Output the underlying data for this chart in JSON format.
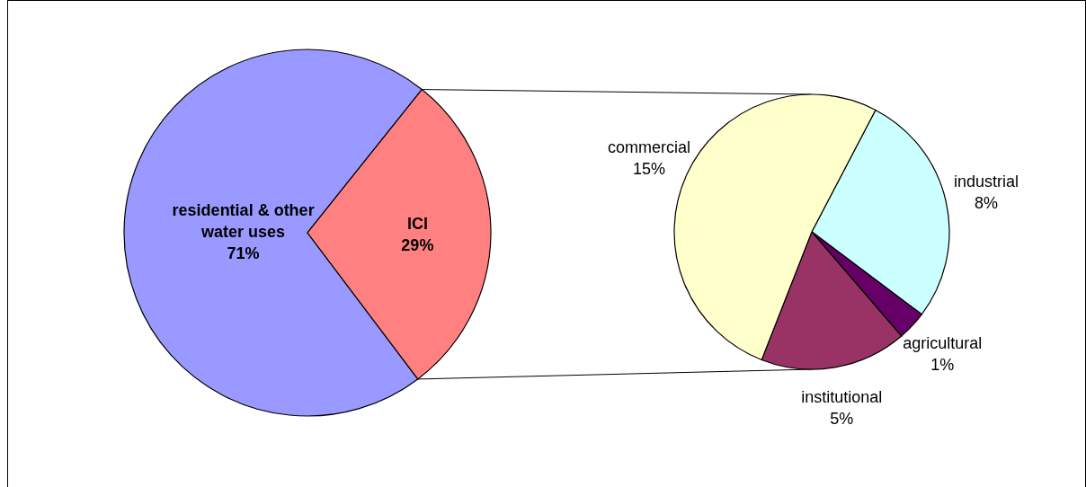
{
  "chart_data": [
    {
      "type": "pie",
      "categories": [
        "residential & other water uses",
        "ICI"
      ],
      "values": [
        71,
        29
      ],
      "value_labels": [
        "71%",
        "29%"
      ],
      "colors": [
        "#9999ff",
        "#ff8080"
      ]
    },
    {
      "type": "pie",
      "categories": [
        "industrial",
        "agricultural",
        "institutional",
        "commercial"
      ],
      "values": [
        8,
        1,
        5,
        15
      ],
      "value_labels": [
        "8%",
        "1%",
        "5%",
        "15%"
      ],
      "colors": [
        "#ccffff",
        "#660066",
        "#993366",
        "#ffffcc"
      ]
    }
  ]
}
